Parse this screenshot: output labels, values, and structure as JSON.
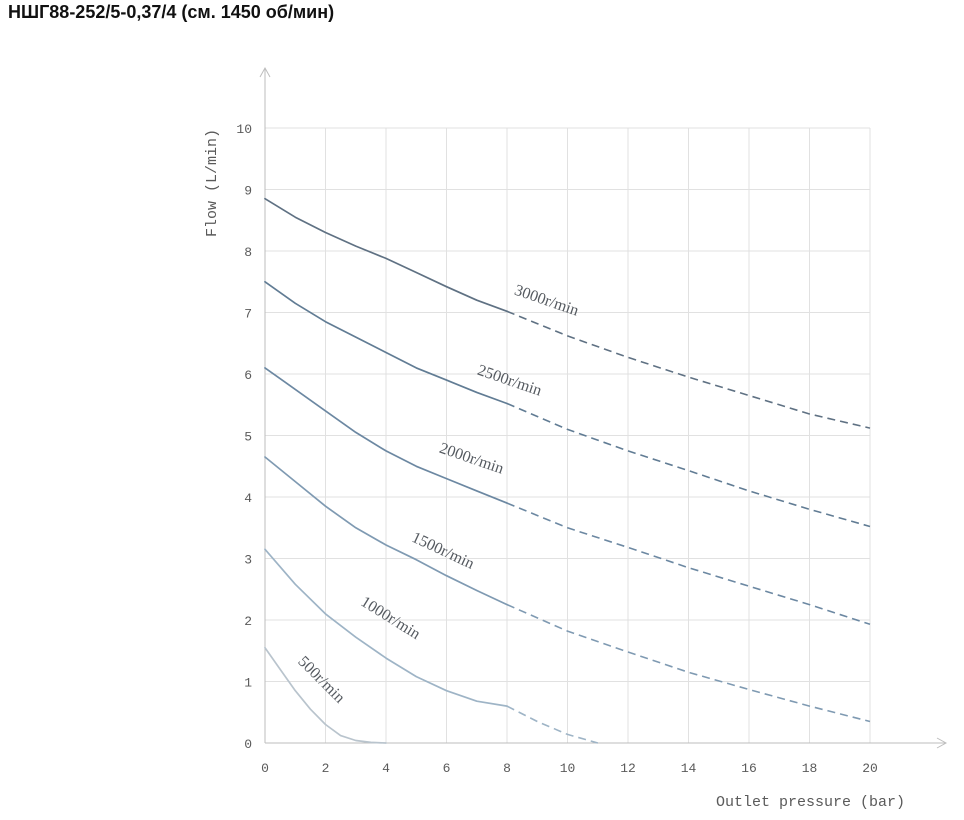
{
  "page": {
    "title": "НШГ88-252/5-0,37/4 (см. 1450 об/мин)"
  },
  "chart_data": {
    "type": "line",
    "title": "",
    "xlabel": "Outlet pressure (bar)",
    "ylabel": "Flow (L/min)",
    "xlim": [
      0,
      20
    ],
    "ylim": [
      0,
      10
    ],
    "xticks": [
      0,
      2,
      4,
      6,
      8,
      10,
      12,
      14,
      16,
      18,
      20
    ],
    "yticks": [
      0,
      1,
      2,
      3,
      4,
      5,
      6,
      7,
      8,
      9,
      10
    ],
    "grid": true,
    "series": [
      {
        "name": "3000r/min",
        "color": "#5f7183",
        "solid": [
          [
            0,
            8.85
          ],
          [
            1,
            8.55
          ],
          [
            2,
            8.3
          ],
          [
            3,
            8.08
          ],
          [
            4,
            7.88
          ],
          [
            5,
            7.65
          ],
          [
            6,
            7.42
          ],
          [
            7,
            7.2
          ],
          [
            8,
            7.02
          ]
        ],
        "dashed": [
          [
            8,
            7.02
          ],
          [
            10,
            6.62
          ],
          [
            12,
            6.27
          ],
          [
            14,
            5.95
          ],
          [
            16,
            5.65
          ],
          [
            18,
            5.35
          ],
          [
            20,
            5.12
          ]
        ]
      },
      {
        "name": "2500r/min",
        "color": "#617c94",
        "solid": [
          [
            0,
            7.5
          ],
          [
            1,
            7.15
          ],
          [
            2,
            6.85
          ],
          [
            3,
            6.6
          ],
          [
            4,
            6.35
          ],
          [
            5,
            6.1
          ],
          [
            6,
            5.9
          ],
          [
            7,
            5.7
          ],
          [
            8,
            5.52
          ]
        ],
        "dashed": [
          [
            8,
            5.52
          ],
          [
            10,
            5.1
          ],
          [
            12,
            4.75
          ],
          [
            14,
            4.43
          ],
          [
            16,
            4.1
          ],
          [
            18,
            3.8
          ],
          [
            20,
            3.52
          ]
        ]
      },
      {
        "name": "2000r/min",
        "color": "#6c88a2",
        "solid": [
          [
            0,
            6.1
          ],
          [
            1,
            5.75
          ],
          [
            2,
            5.4
          ],
          [
            3,
            5.05
          ],
          [
            4,
            4.75
          ],
          [
            5,
            4.5
          ],
          [
            6,
            4.3
          ],
          [
            7,
            4.1
          ],
          [
            8,
            3.9
          ]
        ],
        "dashed": [
          [
            8,
            3.9
          ],
          [
            10,
            3.5
          ],
          [
            12,
            3.18
          ],
          [
            14,
            2.85
          ],
          [
            16,
            2.55
          ],
          [
            18,
            2.25
          ],
          [
            20,
            1.93
          ]
        ]
      },
      {
        "name": "1500r/min",
        "color": "#7f9ab2",
        "solid": [
          [
            0,
            4.65
          ],
          [
            1,
            4.25
          ],
          [
            2,
            3.85
          ],
          [
            3,
            3.5
          ],
          [
            4,
            3.22
          ],
          [
            5,
            2.98
          ],
          [
            6,
            2.72
          ],
          [
            7,
            2.48
          ],
          [
            8,
            2.25
          ]
        ],
        "dashed": [
          [
            8,
            2.25
          ],
          [
            10,
            1.82
          ],
          [
            12,
            1.48
          ],
          [
            14,
            1.15
          ],
          [
            16,
            0.87
          ],
          [
            18,
            0.6
          ],
          [
            20,
            0.35
          ]
        ]
      },
      {
        "name": "1000r/min",
        "color": "#9eb4c6",
        "solid": [
          [
            0,
            3.15
          ],
          [
            1,
            2.58
          ],
          [
            2,
            2.1
          ],
          [
            3,
            1.72
          ],
          [
            4,
            1.38
          ],
          [
            5,
            1.08
          ],
          [
            6,
            0.85
          ],
          [
            7,
            0.68
          ],
          [
            8,
            0.6
          ]
        ],
        "dashed": [
          [
            8,
            0.6
          ],
          [
            9,
            0.35
          ],
          [
            10,
            0.14
          ],
          [
            11,
            0.0
          ]
        ]
      },
      {
        "name": "500r/min",
        "color": "#b9c4cd",
        "solid": [
          [
            0,
            1.55
          ],
          [
            0.5,
            1.2
          ],
          [
            1,
            0.85
          ],
          [
            1.5,
            0.55
          ],
          [
            2,
            0.3
          ],
          [
            2.5,
            0.12
          ],
          [
            3,
            0.04
          ],
          [
            3.5,
            0.01
          ],
          [
            4,
            0.0
          ]
        ],
        "dashed": []
      }
    ]
  }
}
